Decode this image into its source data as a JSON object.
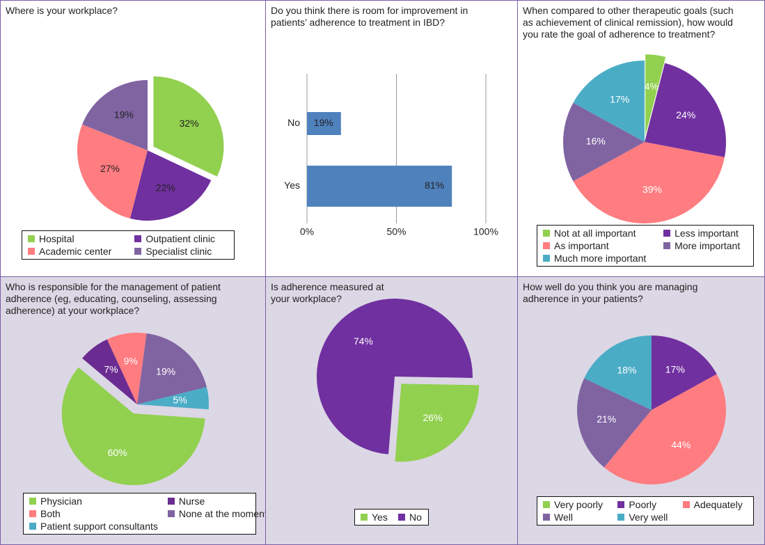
{
  "chart_data": [
    {
      "type": "pie",
      "title": [
        "Where is your workplace?"
      ],
      "categories": [
        "Hospital",
        "Outpatient clinic",
        "Academic center",
        "Specialist clinic"
      ],
      "values": [
        32,
        22,
        27,
        19
      ],
      "value_labels": [
        "32%",
        "22%",
        "27%",
        "19%"
      ],
      "colors": [
        "#92d050",
        "#7030a0",
        "#ff7c80",
        "#8064a2"
      ]
    },
    {
      "type": "bar",
      "title": [
        "Do you think there is room for improvement in",
        "patients’ adherence to treatment in IBD?"
      ],
      "categories": [
        "No",
        "Yes"
      ],
      "values": [
        19,
        81
      ],
      "value_labels": [
        "19%",
        "81%"
      ],
      "color": "#4f81bd",
      "xlim": [
        0,
        100
      ],
      "xticks": [
        {
          "value": 0,
          "label": "0%"
        },
        {
          "value": 50,
          "label": "50%"
        },
        {
          "value": 100,
          "label": "100%"
        }
      ],
      "grid": true
    },
    {
      "type": "pie",
      "title": [
        "When compared to other therapeutic goals (such",
        "as achievement of clinical remission), how would",
        "you rate the goal of adherence to treatment?"
      ],
      "categories": [
        "Not at all important",
        "Less important",
        "As important",
        "More important",
        "Much more important"
      ],
      "values": [
        4,
        24,
        39,
        16,
        17
      ],
      "value_labels": [
        "4%",
        "24%",
        "39%",
        "16%",
        "17%"
      ],
      "colors": [
        "#92d050",
        "#7030a0",
        "#ff7c80",
        "#8064a2",
        "#4bacc6"
      ]
    },
    {
      "type": "pie",
      "title": [
        "Who is responsible for the management of patient",
        "adherence (eg, educating, counseling, assessing",
        "adherence) at your workplace?"
      ],
      "categories": [
        "Physician",
        "Nurse",
        "Both",
        "None at the moment",
        "Patient support consultants"
      ],
      "values": [
        60,
        7,
        9,
        19,
        5
      ],
      "value_labels": [
        "60%",
        "7%",
        "9%",
        "19%",
        "5%"
      ],
      "colors": [
        "#92d050",
        "#6a2c91",
        "#ff7c80",
        "#8064a2",
        "#4bacc6"
      ]
    },
    {
      "type": "pie",
      "title": [
        "Is adherence measured at",
        "your workplace?"
      ],
      "categories": [
        "Yes",
        "No"
      ],
      "values": [
        26,
        74
      ],
      "value_labels": [
        "26%",
        "74%"
      ],
      "colors": [
        "#92d050",
        "#7030a0"
      ]
    },
    {
      "type": "pie",
      "title": [
        "How well do you think you are managing",
        "adherence in your patients?"
      ],
      "categories": [
        "Very poorly",
        "Poorly",
        "Adequately",
        "Well",
        "Very well"
      ],
      "values": [
        0,
        17,
        44,
        21,
        18
      ],
      "value_labels": [
        "0%",
        "17%",
        "44%",
        "21%",
        "18%"
      ],
      "colors": [
        "#92d050",
        "#7030a0",
        "#ff7c80",
        "#8064a2",
        "#4bacc6"
      ]
    }
  ]
}
